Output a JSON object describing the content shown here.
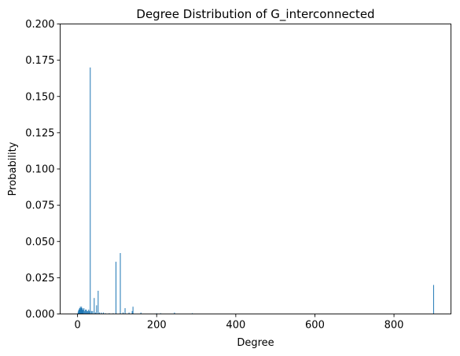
{
  "chart_data": {
    "type": "bar",
    "title": "Degree Distribution of G_interconnected",
    "xlabel": "Degree",
    "ylabel": "Probability",
    "xlim": [
      -44,
      944
    ],
    "ylim": [
      0,
      0.2
    ],
    "xticks": [
      0,
      200,
      400,
      600,
      800
    ],
    "yticks": [
      0.0,
      0.025,
      0.05,
      0.075,
      0.1,
      0.125,
      0.15,
      0.175,
      0.2
    ],
    "xtick_labels": [
      "0",
      "200",
      "400",
      "600",
      "800"
    ],
    "ytick_labels": [
      "0.000",
      "0.025",
      "0.050",
      "0.075",
      "0.100",
      "0.125",
      "0.150",
      "0.175",
      "0.200"
    ],
    "grid": false,
    "bar_color": "#1f77b4",
    "series": [
      {
        "x": [
          1,
          2,
          3,
          4,
          5,
          6,
          7,
          8,
          9,
          10,
          11,
          12,
          13,
          14,
          16,
          18,
          20,
          22,
          24,
          26,
          28,
          30,
          32,
          35,
          38,
          42,
          45,
          48,
          52,
          55,
          60,
          65,
          70,
          80,
          90,
          97,
          108,
          115,
          120,
          130,
          138,
          140,
          160,
          200,
          210,
          245,
          290,
          900
        ],
        "values": [
          0.001,
          0.002,
          0.003,
          0.003,
          0.004,
          0.004,
          0.005,
          0.003,
          0.004,
          0.005,
          0.003,
          0.004,
          0.002,
          0.003,
          0.004,
          0.002,
          0.003,
          0.003,
          0.002,
          0.002,
          0.003,
          0.002,
          0.17,
          0.002,
          0.002,
          0.011,
          0.001,
          0.006,
          0.016,
          0.001,
          0.001,
          0.001,
          0.0005,
          0.0005,
          0.0005,
          0.036,
          0.042,
          0.001,
          0.004,
          0.001,
          0.002,
          0.005,
          0.001,
          0.0005,
          0.0005,
          0.001,
          0.0005,
          0.02
        ]
      }
    ]
  }
}
